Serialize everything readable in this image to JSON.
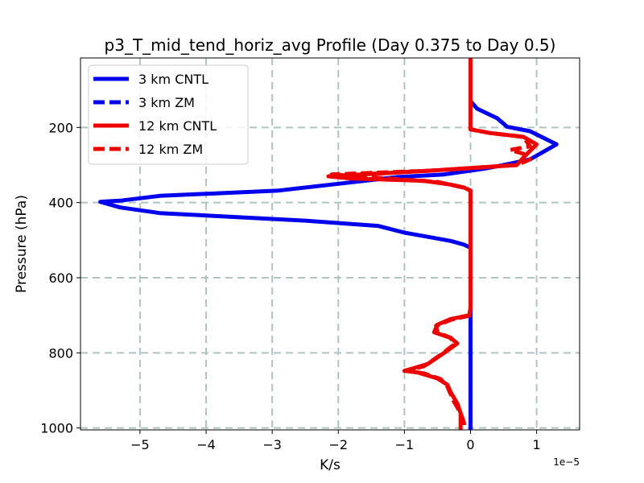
{
  "chart_data": {
    "type": "line",
    "title": "p3_T_mid_tend_horiz_avg Profile (Day 0.375 to Day 0.5)",
    "xlabel": "K/s",
    "ylabel": "Pressure (hPa)",
    "x_offset_label": "1e−5",
    "xlim": [
      -5.9,
      1.65
    ],
    "ylim": [
      1005,
      15
    ],
    "y_inverted": true,
    "xticks": [
      -5,
      -4,
      -3,
      -2,
      -1,
      0,
      1
    ],
    "xtick_labels": [
      "−5",
      "−4",
      "−3",
      "−2",
      "−1",
      "0",
      "1"
    ],
    "yticks": [
      200,
      400,
      600,
      800,
      1000
    ],
    "ytick_labels": [
      "200",
      "400",
      "600",
      "800",
      "1000"
    ],
    "grid": true,
    "legend_position": "upper-left",
    "series": [
      {
        "name": "3 km CNTL",
        "color": "#0000ee",
        "style": "solid",
        "points": [
          [
            0,
            15
          ],
          [
            0,
            130
          ],
          [
            0.05,
            140
          ],
          [
            0.1,
            150
          ],
          [
            0.4,
            175
          ],
          [
            0.5,
            190
          ],
          [
            0.55,
            198
          ],
          [
            0.9,
            210
          ],
          [
            1.3,
            245
          ],
          [
            0.9,
            285
          ],
          [
            0.5,
            300
          ],
          [
            0.2,
            310
          ],
          [
            -0.4,
            325
          ],
          [
            -1.1,
            332
          ],
          [
            -2,
            350
          ],
          [
            -2.9,
            368
          ],
          [
            -4.7,
            382
          ],
          [
            -5.3,
            395
          ],
          [
            -5.6,
            398
          ],
          [
            -5.3,
            413
          ],
          [
            -4.7,
            428
          ],
          [
            -2.5,
            448
          ],
          [
            -1.4,
            462
          ],
          [
            -1.0,
            480
          ],
          [
            -0.3,
            502
          ],
          [
            -0.1,
            512
          ],
          [
            0,
            520
          ],
          [
            0,
            1005
          ]
        ]
      },
      {
        "name": "3 km ZM",
        "color": "#0000ee",
        "style": "dashed",
        "points": [
          [
            0,
            730
          ],
          [
            0,
            970
          ]
        ]
      },
      {
        "name": "12 km CNTL",
        "color": "#ee0000",
        "style": "solid",
        "points": [
          [
            0,
            15
          ],
          [
            0,
            205
          ],
          [
            0.3,
            215
          ],
          [
            0.8,
            225
          ],
          [
            1.0,
            245
          ],
          [
            0.8,
            280
          ],
          [
            0.7,
            300
          ],
          [
            -0.6,
            315
          ],
          [
            -2.15,
            330
          ],
          [
            -1.8,
            336
          ],
          [
            -0.7,
            342
          ],
          [
            -0.3,
            352
          ],
          [
            -0.1,
            360
          ],
          [
            0,
            368
          ],
          [
            0,
            680
          ],
          [
            -0.02,
            700
          ],
          [
            -0.3,
            710
          ],
          [
            -0.5,
            725
          ],
          [
            -0.55,
            745
          ],
          [
            -0.3,
            760
          ],
          [
            -0.2,
            775
          ],
          [
            -0.4,
            800
          ],
          [
            -0.65,
            830
          ],
          [
            -1.0,
            848
          ],
          [
            -0.8,
            852
          ],
          [
            -0.5,
            868
          ],
          [
            -0.35,
            885
          ],
          [
            -0.3,
            905
          ],
          [
            -0.25,
            920
          ],
          [
            -0.2,
            935
          ],
          [
            -0.15,
            960
          ],
          [
            -0.15,
            985
          ],
          [
            -0.15,
            1005
          ]
        ]
      },
      {
        "name": "12 km ZM",
        "color": "#ee0000",
        "style": "dashed",
        "points": [
          [
            0,
            15
          ],
          [
            0,
            205
          ],
          [
            0.3,
            215
          ],
          [
            0.8,
            225
          ],
          [
            0.9,
            250
          ],
          [
            0.6,
            260
          ],
          [
            0.8,
            270
          ],
          [
            0.9,
            285
          ],
          [
            0.7,
            300
          ],
          [
            -0.6,
            315
          ],
          [
            -2.1,
            325
          ],
          [
            -1.5,
            333
          ],
          [
            -0.5,
            345
          ],
          [
            -0.1,
            360
          ],
          [
            0,
            368
          ],
          [
            0,
            680
          ],
          [
            0,
            700
          ],
          [
            -0.3,
            712
          ],
          [
            -0.52,
            728
          ],
          [
            -0.5,
            745
          ],
          [
            -0.3,
            760
          ],
          [
            -0.25,
            778
          ],
          [
            -0.45,
            805
          ],
          [
            -0.7,
            835
          ],
          [
            -0.95,
            848
          ],
          [
            -0.7,
            855
          ],
          [
            -0.45,
            870
          ],
          [
            -0.35,
            890
          ],
          [
            -0.3,
            910
          ],
          [
            -0.25,
            930
          ],
          [
            -0.15,
            960
          ],
          [
            -0.1,
            985
          ],
          [
            -0.1,
            1005
          ]
        ]
      }
    ]
  }
}
